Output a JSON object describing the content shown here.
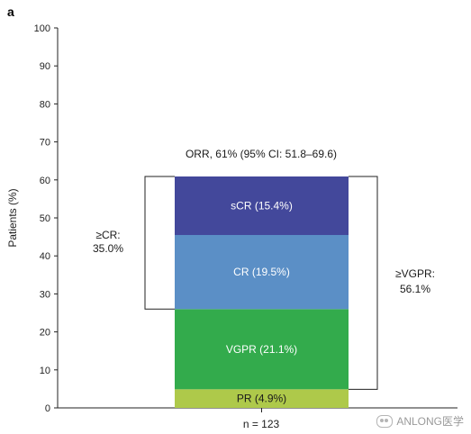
{
  "chart_data": {
    "type": "bar",
    "panel_label": "a",
    "ylabel": "Patients (%)",
    "ylim": [
      0,
      100
    ],
    "yticks": [
      0,
      10,
      20,
      30,
      40,
      50,
      60,
      70,
      80,
      90,
      100
    ],
    "category_label": "n = 123",
    "stack": [
      {
        "name": "PR",
        "label": "PR (4.9%)",
        "value": 4.9,
        "color": "#aec94a",
        "label_dark": true
      },
      {
        "name": "VGPR",
        "label": "VGPR (21.1%)",
        "value": 21.1,
        "color": "#33ab4c",
        "label_dark": false
      },
      {
        "name": "CR",
        "label": "CR (19.5%)",
        "value": 19.5,
        "color": "#5b8fc6",
        "label_dark": false
      },
      {
        "name": "sCR",
        "label": "sCR (15.4%)",
        "value": 15.4,
        "color": "#43489b",
        "label_dark": false
      }
    ],
    "annotations": {
      "orr": "ORR, 61% (95% CI: 51.8–69.6)",
      "cr_bracket": {
        "line1": "≥CR:",
        "line2": "35.0%",
        "from": 26.0,
        "to": 60.9
      },
      "vgpr_bracket": {
        "line1": "≥VGPR:",
        "line2": "56.1%",
        "from": 4.9,
        "to": 60.9
      }
    },
    "grid": false,
    "legend": "none"
  },
  "watermark": "ANLONG医学"
}
